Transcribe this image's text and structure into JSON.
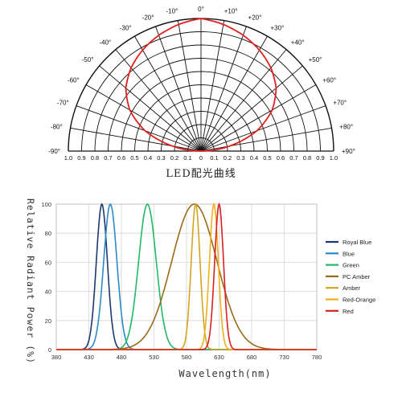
{
  "chart_data": [
    {
      "type": "polar",
      "title": "LED配光曲线",
      "angle_labels": [
        "-90°",
        "-80°",
        "-70°",
        "-60°",
        "-50°",
        "-40°",
        "-30°",
        "-20°",
        "-10°",
        "0°",
        "+10°",
        "+20°",
        "+30°",
        "+40°",
        "+50°",
        "+60°",
        "+70°",
        "+80°",
        "+90°"
      ],
      "radial_labels_left": [
        "1.0",
        "0.9",
        "0.8",
        "0.7",
        "0.6",
        "0.5",
        "0.4",
        "0.3",
        "0.2",
        "0.1",
        "0"
      ],
      "radial_labels_right": [
        "0.1",
        "0.2",
        "0.3",
        "0.4",
        "0.5",
        "0.6",
        "0.7",
        "0.8",
        "0.9",
        "1.0"
      ],
      "series": [
        {
          "color": "#e02020",
          "angles": [
            -90,
            -80,
            -70,
            -60,
            -50,
            -40,
            -30,
            -20,
            -10,
            0,
            10,
            20,
            30,
            40,
            50,
            60,
            70,
            80,
            90
          ],
          "values": [
            0,
            0.22,
            0.45,
            0.62,
            0.74,
            0.82,
            0.88,
            0.93,
            0.97,
            1.0,
            0.97,
            0.93,
            0.88,
            0.82,
            0.74,
            0.62,
            0.45,
            0.22,
            0
          ]
        }
      ]
    },
    {
      "type": "line",
      "xlabel": "Wavelength(nm)",
      "ylabel": "Relative Radiant Power (%)",
      "xlim": [
        380,
        780
      ],
      "ylim": [
        0,
        100
      ],
      "x_ticks": [
        "380",
        "430",
        "480",
        "530",
        "580",
        "630",
        "680",
        "730",
        "780"
      ],
      "y_ticks": [
        "0",
        "20",
        "40",
        "60",
        "80",
        "100"
      ],
      "grid": true,
      "legend_position": "right",
      "series": [
        {
          "name": "Royal Blue",
          "color": "#1a3a6e",
          "peak": 450,
          "fwhm": 20
        },
        {
          "name": "Blue",
          "color": "#2a8ac8",
          "peak": 463,
          "fwhm": 24
        },
        {
          "name": "Green",
          "color": "#23b76a",
          "peak": 520,
          "fwhm": 32
        },
        {
          "name": "PC Amber",
          "color": "#9a6a1a",
          "peak": 592,
          "fwhm": 82
        },
        {
          "name": "Amber",
          "color": "#d4a420",
          "peak": 594,
          "fwhm": 16
        },
        {
          "name": "Red-Orange",
          "color": "#f0b020",
          "peak": 622,
          "fwhm": 16
        },
        {
          "name": "Red",
          "color": "#d82020",
          "peak": 630,
          "fwhm": 16
        }
      ]
    }
  ]
}
